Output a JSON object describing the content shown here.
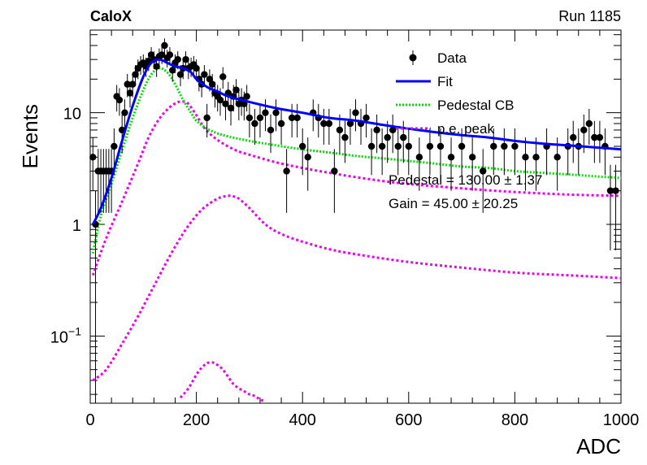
{
  "labels": {
    "experiment": "CaloX",
    "run": "Run 1185",
    "fit_pedestal": "Pedestal = 130.00 ± 1.37",
    "fit_gain": "Gain = 45.00 ± 20.25"
  },
  "colors": {
    "data": "#000000",
    "fit": "#0000ff",
    "pedestal_cb": "#00dd00",
    "pe_peak": "#ee00ee"
  },
  "chart_data": {
    "type": "scatter",
    "xlabel": "ADC",
    "ylabel": "Events",
    "xlim": [
      0,
      1000
    ],
    "ylim": [
      0.025,
      55
    ],
    "yscale": "log",
    "x_ticks": [
      0,
      200,
      400,
      600,
      800,
      1000
    ],
    "x_tick_labels": [
      "0",
      "200",
      "400",
      "600",
      "800",
      "1000"
    ],
    "y_ticks": [
      0.1,
      1,
      10
    ],
    "y_tick_labels": [
      "10^-1",
      "1",
      "10"
    ],
    "grid": false,
    "legend_position": "top-right",
    "legend": [
      "Data",
      "Fit",
      "Pedestal CB",
      "p.e. peak"
    ],
    "series": [
      {
        "name": "Data",
        "kind": "points-with-errors",
        "x": [
          5,
          10,
          15,
          20,
          25,
          30,
          35,
          40,
          45,
          50,
          55,
          60,
          65,
          70,
          75,
          80,
          85,
          90,
          95,
          100,
          105,
          110,
          115,
          120,
          125,
          130,
          135,
          140,
          145,
          150,
          155,
          160,
          165,
          170,
          175,
          180,
          185,
          190,
          195,
          200,
          205,
          210,
          215,
          220,
          225,
          230,
          235,
          240,
          245,
          250,
          255,
          260,
          265,
          270,
          275,
          280,
          285,
          290,
          295,
          300,
          310,
          320,
          330,
          340,
          350,
          360,
          370,
          380,
          390,
          400,
          410,
          420,
          430,
          440,
          450,
          460,
          470,
          480,
          490,
          500,
          510,
          520,
          530,
          540,
          550,
          560,
          570,
          580,
          590,
          600,
          620,
          640,
          660,
          680,
          700,
          720,
          740,
          760,
          780,
          800,
          820,
          840,
          860,
          880,
          900,
          910,
          920,
          930,
          940,
          950,
          960,
          970,
          980,
          990
        ],
        "y": [
          4,
          1,
          3,
          3,
          3,
          3,
          3,
          3,
          5,
          14,
          13,
          7,
          10,
          18,
          15,
          18,
          22,
          25,
          27,
          28,
          26,
          29,
          33,
          30,
          26,
          32,
          33,
          40,
          31,
          33,
          24,
          28,
          30,
          22,
          25,
          30,
          25,
          26,
          27,
          25,
          20,
          18,
          22,
          9,
          20,
          18,
          15,
          14,
          13,
          21,
          12,
          15,
          11,
          14,
          16,
          12,
          13,
          12,
          14,
          9,
          8,
          9,
          10,
          7,
          10,
          8,
          3,
          9,
          9,
          5,
          4,
          10,
          9,
          8,
          8,
          3,
          7,
          6,
          8,
          10,
          8,
          9,
          5,
          7,
          5,
          6,
          7,
          5,
          6,
          5,
          4,
          5,
          5,
          4,
          5,
          4,
          3,
          5,
          5,
          5,
          4,
          4,
          5,
          4,
          5,
          6,
          5,
          7,
          8,
          6,
          6,
          5,
          2,
          2
        ]
      },
      {
        "name": "Fit",
        "x": [
          5,
          20,
          40,
          60,
          80,
          100,
          115,
          130,
          145,
          160,
          175,
          190,
          200,
          220,
          240,
          260,
          300,
          350,
          400,
          450,
          500,
          550,
          600,
          650,
          700,
          750,
          800,
          850,
          900,
          950,
          1000
        ],
        "y": [
          1.0,
          1.4,
          2.6,
          5.6,
          11.5,
          21,
          28,
          30,
          28,
          26,
          25,
          23,
          20,
          17,
          15.5,
          14,
          12.5,
          11,
          10,
          9,
          8.5,
          7.8,
          7.2,
          6.7,
          6.3,
          6.0,
          5.6,
          5.3,
          5.1,
          4.9,
          4.7
        ]
      },
      {
        "name": "Pedestal CB",
        "x": [
          5,
          20,
          40,
          60,
          80,
          100,
          115,
          130,
          145,
          160,
          175,
          190,
          200,
          220,
          250,
          300,
          350,
          400,
          450,
          500,
          550,
          600,
          650,
          700,
          750,
          800,
          850,
          900,
          950,
          1000
        ],
        "y": [
          0.55,
          1.2,
          2.3,
          4.6,
          9,
          16,
          22,
          25,
          23,
          18,
          13,
          10,
          8.5,
          7.2,
          6.3,
          5.6,
          5.1,
          4.7,
          4.4,
          4.1,
          3.9,
          3.7,
          3.5,
          3.3,
          3.2,
          3.0,
          2.9,
          2.8,
          2.7,
          2.6
        ]
      },
      {
        "name": "p.e. peak 1",
        "x": [
          5,
          30,
          60,
          90,
          110,
          130,
          150,
          165,
          175,
          185,
          200,
          215,
          230,
          250,
          275,
          300,
          350,
          400,
          450,
          500,
          550,
          600,
          700,
          800,
          900,
          1000
        ],
        "y": [
          0.35,
          0.75,
          1.6,
          3.5,
          6,
          8.8,
          11.2,
          12.4,
          12.6,
          12,
          9.5,
          7.3,
          6.2,
          5.3,
          4.6,
          4.2,
          3.6,
          3.2,
          2.9,
          2.65,
          2.45,
          2.3,
          2.1,
          1.95,
          1.85,
          1.8
        ]
      },
      {
        "name": "p.e. peak 2",
        "x": [
          5,
          30,
          60,
          90,
          120,
          150,
          180,
          210,
          240,
          260,
          270,
          280,
          300,
          330,
          360,
          400,
          450,
          500,
          600,
          700,
          800,
          900,
          1000
        ],
        "y": [
          0.04,
          0.05,
          0.085,
          0.15,
          0.28,
          0.52,
          0.9,
          1.35,
          1.7,
          1.8,
          1.78,
          1.7,
          1.4,
          1.0,
          0.82,
          0.7,
          0.6,
          0.54,
          0.46,
          0.41,
          0.37,
          0.35,
          0.33
        ]
      },
      {
        "name": "p.e. peak 3",
        "x": [
          170,
          185,
          200,
          210,
          220,
          230,
          240,
          250,
          260,
          270,
          280,
          290,
          300,
          310,
          320,
          330
        ],
        "y": [
          0.028,
          0.034,
          0.045,
          0.052,
          0.057,
          0.058,
          0.055,
          0.05,
          0.043,
          0.037,
          0.034,
          0.032,
          0.03,
          0.029,
          0.027,
          0.026
        ]
      }
    ]
  }
}
